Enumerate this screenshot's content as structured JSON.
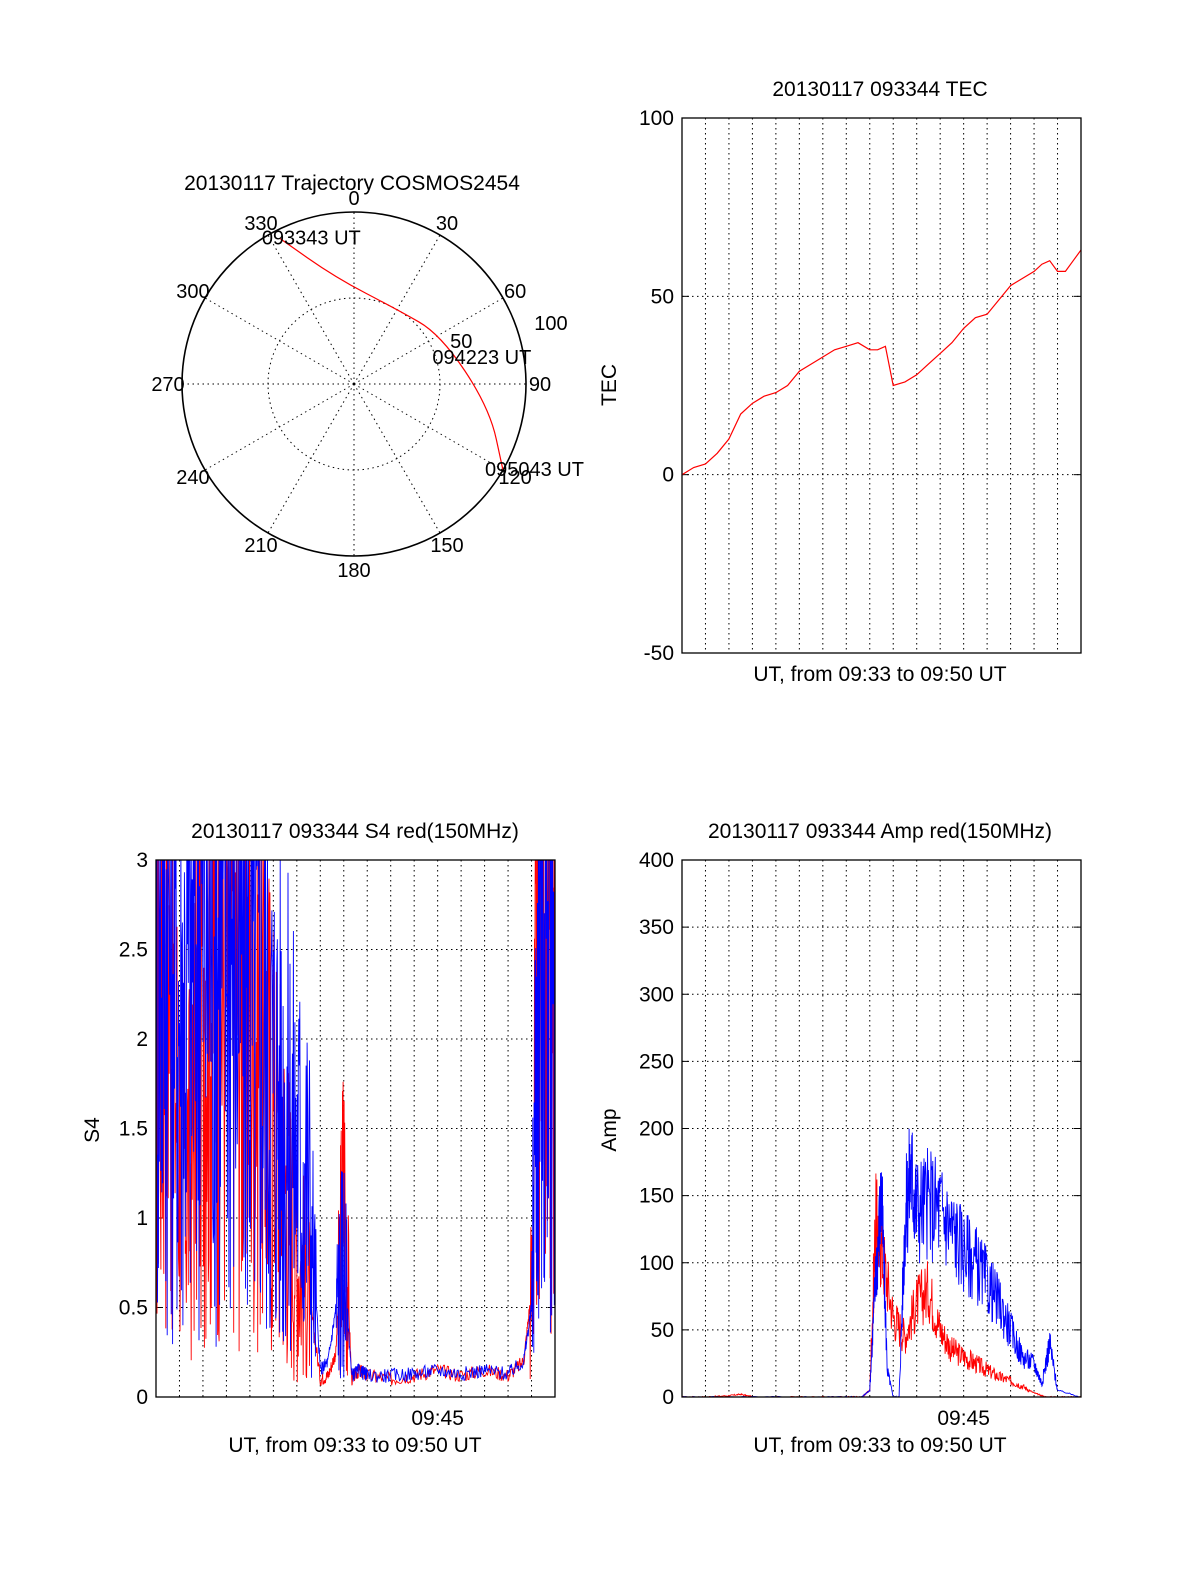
{
  "chart_data": [
    {
      "type": "polar",
      "title": "20130117 Trajectory COSMOS2454",
      "angle_labels": [
        "0",
        "30",
        "60",
        "90",
        "120",
        "150",
        "180",
        "210",
        "240",
        "270",
        "300",
        "330"
      ],
      "radius_labels": [
        "50",
        "100"
      ],
      "rlim": [
        0,
        100
      ],
      "grid": true,
      "trajectory": {
        "color": "#ff0000",
        "points": [
          {
            "azimuth": 333,
            "zenith": 95
          },
          {
            "azimuth": 350,
            "zenith": 63
          },
          {
            "azimuth": 30,
            "zenith": 50
          },
          {
            "azimuth": 60,
            "zenith": 58
          },
          {
            "azimuth": 100,
            "zenith": 80
          },
          {
            "azimuth": 120,
            "zenith": 100
          }
        ],
        "annotations": [
          {
            "text": "093343 UT",
            "azimuth": 333,
            "zenith": 95
          },
          {
            "text": "094223 UT",
            "azimuth": 75,
            "zenith": 58
          },
          {
            "text": "095043 UT",
            "azimuth": 120,
            "zenith": 100
          }
        ]
      }
    },
    {
      "type": "line",
      "title": "20130117 093344 TEC",
      "xlabel": "UT, from 09:33 to 09:50 UT",
      "ylabel": "TEC",
      "xlim": [
        "09:33",
        "09:50"
      ],
      "ylim": [
        -50,
        100
      ],
      "yticks": [
        "100",
        "50",
        "0",
        "-50"
      ],
      "grid": true,
      "series": [
        {
          "color": "#ff0000",
          "x": [
            "09:33:00",
            "09:33:30",
            "09:34:00",
            "09:34:30",
            "09:35:00",
            "09:35:30",
            "09:36:00",
            "09:36:30",
            "09:37:00",
            "09:37:30",
            "09:38:00",
            "09:38:30",
            "09:39:00",
            "09:39:30",
            "09:40:00",
            "09:40:30",
            "09:41:00",
            "09:41:20",
            "09:41:40",
            "09:42:00",
            "09:42:30",
            "09:43:00",
            "09:43:30",
            "09:44:00",
            "09:44:30",
            "09:45:00",
            "09:45:30",
            "09:46:00",
            "09:46:30",
            "09:47:00",
            "09:47:30",
            "09:48:00",
            "09:48:20",
            "09:48:40",
            "09:49:00",
            "09:49:20",
            "09:49:40",
            "09:50:00"
          ],
          "values": [
            0,
            2,
            3,
            6,
            10,
            17,
            20,
            22,
            23,
            25,
            29,
            31,
            33,
            35,
            36,
            37,
            35,
            35,
            36,
            25,
            26,
            28,
            31,
            34,
            37,
            41,
            44,
            45,
            49,
            53,
            55,
            57,
            59,
            60,
            57,
            57,
            60,
            63
          ]
        }
      ]
    },
    {
      "type": "line",
      "title": "20130117 093344 S4 red(150MHz)",
      "xlabel": "UT, from 09:33 to 09:50 UT",
      "ylabel": "S4",
      "xlim": [
        "09:33",
        "09:50"
      ],
      "ylim": [
        0,
        3
      ],
      "yticks": [
        "3",
        "2.5",
        "2",
        "1.5",
        "1",
        "0.5",
        "0"
      ],
      "xticks": [
        "09:45"
      ],
      "grid": true,
      "series": [
        {
          "color": "#ff0000",
          "x": [
            "09:33:00",
            "09:33:30",
            "09:34:00",
            "09:34:30",
            "09:35:00",
            "09:35:30",
            "09:36:00",
            "09:36:30",
            "09:37:00",
            "09:37:30",
            "09:38:00",
            "09:38:30",
            "09:39:00",
            "09:39:30",
            "09:40:00",
            "09:40:20",
            "09:40:40",
            "09:41:00",
            "09:41:20",
            "09:41:40",
            "09:42:00",
            "09:43:00",
            "09:44:00",
            "09:45:00",
            "09:46:00",
            "09:47:00",
            "09:48:00",
            "09:48:40",
            "09:49:00",
            "09:49:20",
            "09:49:40",
            "09:50:00"
          ],
          "values": [
            2.0,
            2.6,
            1.5,
            1.2,
            2.7,
            2.3,
            2.4,
            2.5,
            2.3,
            2.0,
            1.5,
            1.2,
            0.8,
            0.6,
            0.1,
            0.12,
            0.25,
            1.2,
            0.1,
            0.15,
            0.12,
            0.1,
            0.12,
            0.15,
            0.12,
            0.15,
            0.12,
            0.2,
            0.6,
            3.0,
            3.0,
            3.0
          ]
        },
        {
          "color": "#0000ff",
          "x": [
            "09:33:00",
            "09:33:30",
            "09:34:00",
            "09:34:30",
            "09:35:00",
            "09:35:30",
            "09:36:00",
            "09:36:30",
            "09:37:00",
            "09:37:30",
            "09:38:00",
            "09:38:30",
            "09:39:00",
            "09:39:30",
            "09:40:00",
            "09:40:20",
            "09:40:40",
            "09:41:00",
            "09:41:20",
            "09:41:40",
            "09:42:00",
            "09:43:00",
            "09:44:00",
            "09:45:00",
            "09:46:00",
            "09:47:00",
            "09:48:00",
            "09:48:40",
            "09:49:00",
            "09:49:20",
            "09:49:40",
            "09:50:00"
          ],
          "values": [
            2.5,
            2.8,
            2.2,
            2.4,
            2.8,
            2.7,
            2.8,
            2.6,
            2.3,
            2.1,
            1.8,
            1.6,
            1.4,
            1.2,
            0.15,
            0.2,
            0.5,
            0.8,
            0.12,
            0.15,
            0.12,
            0.12,
            0.13,
            0.15,
            0.13,
            0.15,
            0.13,
            0.2,
            0.5,
            2.8,
            3.0,
            3.0
          ]
        }
      ]
    },
    {
      "type": "line",
      "title": "20130117 093344 Amp red(150MHz)",
      "xlabel": "UT, from 09:33 to 09:50 UT",
      "ylabel": "Amp",
      "xlim": [
        "09:33",
        "09:50"
      ],
      "ylim": [
        0,
        400
      ],
      "yticks": [
        "400",
        "350",
        "300",
        "250",
        "200",
        "150",
        "100",
        "50",
        "0"
      ],
      "xticks": [
        "09:45"
      ],
      "grid": true,
      "series": [
        {
          "color": "#ff0000",
          "x": [
            "09:33:00",
            "09:34:00",
            "09:35:00",
            "09:35:30",
            "09:36:00",
            "09:38:00",
            "09:40:00",
            "09:40:40",
            "09:41:00",
            "09:41:15",
            "09:41:30",
            "09:42:00",
            "09:42:30",
            "09:43:00",
            "09:43:30",
            "09:44:00",
            "09:44:30",
            "09:45:00",
            "09:45:30",
            "09:46:00",
            "09:46:30",
            "09:47:00",
            "09:47:30",
            "09:48:00",
            "09:48:30",
            "09:49:00",
            "09:50:00"
          ],
          "values": [
            0,
            0,
            1,
            2,
            0,
            0,
            0,
            0,
            5,
            130,
            110,
            60,
            45,
            70,
            80,
            50,
            35,
            30,
            25,
            20,
            15,
            12,
            8,
            3,
            0,
            0,
            0
          ]
        },
        {
          "color": "#0000ff",
          "x": [
            "09:33:00",
            "09:35:00",
            "09:38:00",
            "09:40:00",
            "09:40:40",
            "09:41:00",
            "09:41:15",
            "09:41:30",
            "09:41:45",
            "09:42:00",
            "09:42:15",
            "09:42:30",
            "09:42:45",
            "09:43:00",
            "09:43:30",
            "09:44:00",
            "09:44:30",
            "09:45:00",
            "09:45:30",
            "09:46:00",
            "09:46:30",
            "09:47:00",
            "09:47:30",
            "09:48:00",
            "09:48:20",
            "09:48:40",
            "09:49:00",
            "09:50:00"
          ],
          "values": [
            0,
            0,
            0,
            0,
            0,
            5,
            90,
            150,
            20,
            0,
            0,
            130,
            170,
            140,
            145,
            140,
            125,
            110,
            100,
            85,
            70,
            50,
            30,
            25,
            10,
            40,
            5,
            0
          ]
        }
      ]
    }
  ]
}
